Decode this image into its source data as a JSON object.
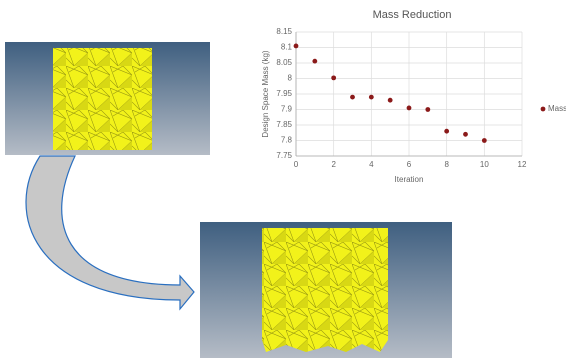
{
  "chart_data": {
    "type": "scatter",
    "title": "Mass Reduction",
    "x_label": "Iteration",
    "y_label": "Design Space Mass (kg)",
    "series": [
      {
        "name": "Mass",
        "color": "#8b1a1a",
        "x": [
          0,
          1,
          2,
          3,
          4,
          5,
          6,
          7,
          8,
          9,
          10
        ],
        "values": [
          8.105,
          8.056,
          8.002,
          7.94,
          7.94,
          7.93,
          7.905,
          7.9,
          7.83,
          7.82,
          7.8
        ]
      }
    ],
    "xlim": [
      0,
      12
    ],
    "ylim": [
      7.75,
      8.15
    ],
    "xticks": [
      0,
      2,
      4,
      6,
      8,
      10,
      12
    ],
    "yticks": [
      7.75,
      7.8,
      7.85,
      7.9,
      7.95,
      8,
      8.05,
      8.1,
      8.15
    ],
    "grid": true,
    "legend": "right"
  }
}
